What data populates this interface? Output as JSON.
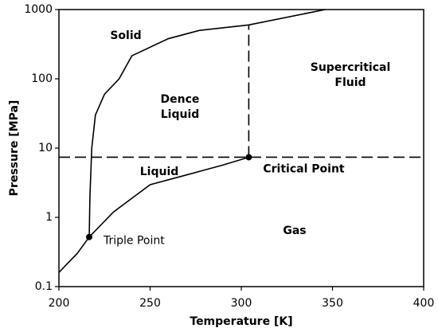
{
  "chart_data": {
    "type": "line",
    "x_label": "Temperature [K]",
    "y_label": "Pressure [MPa]",
    "xlim": [
      200,
      400
    ],
    "ylim": [
      0.1,
      1000
    ],
    "xticks": [
      200,
      250,
      300,
      350,
      400
    ],
    "yticks": [
      0.1,
      1,
      10,
      100,
      1000
    ],
    "y_scale": "log",
    "grid": false,
    "series": [
      {
        "color": "#000000",
        "x": [
          200,
          205,
          210,
          216.6,
          230,
          250,
          270,
          290,
          304.1
        ],
        "values": [
          0.16,
          0.22,
          0.3,
          0.52,
          1.2,
          2.96,
          4.1,
          5.7,
          7.38
        ]
      },
      {
        "color": "#000000",
        "x": [
          216.6,
          217,
          218,
          220,
          225,
          233,
          240,
          260,
          277,
          304.1,
          346
        ],
        "values": [
          0.52,
          2,
          10,
          30,
          60,
          100,
          215,
          380,
          500,
          600,
          1000
        ]
      },
      {
        "color": "#000000",
        "dashed": true,
        "x": [
          200,
          400
        ],
        "values": [
          7.38,
          7.38
        ]
      },
      {
        "color": "#000000",
        "dashed": true,
        "x": [
          304.1,
          304.1
        ],
        "values": [
          7.38,
          600
        ]
      }
    ],
    "points": [
      {
        "label": "Triple Point",
        "x": 216.6,
        "y": 0.52
      },
      {
        "label": "Critical Point",
        "x": 304.1,
        "y": 7.38
      }
    ],
    "annotations": [
      "Solid",
      [
        "Dence",
        "Liquid"
      ],
      [
        "Supercritical",
        "Fluid"
      ],
      "Liquid",
      "Gas"
    ]
  }
}
